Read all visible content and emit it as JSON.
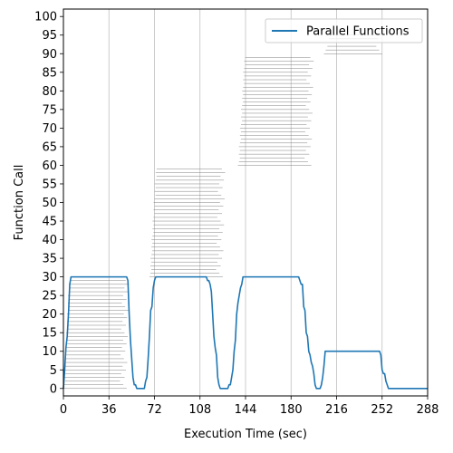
{
  "chart_data": {
    "type": "line",
    "xlabel": "Execution Time (sec)",
    "ylabel": "Function Call",
    "xlim": [
      0,
      288
    ],
    "ylim": [
      -2,
      102
    ],
    "x_ticks": [
      0,
      36,
      72,
      108,
      144,
      180,
      216,
      252,
      288
    ],
    "y_ticks": [
      0,
      5,
      10,
      15,
      20,
      25,
      30,
      35,
      40,
      45,
      50,
      55,
      60,
      65,
      70,
      75,
      80,
      85,
      90,
      95,
      100
    ],
    "grid": "vertical",
    "legend_position": "top-right",
    "series": [
      {
        "name": "Parallel Functions",
        "color": "#1f77b4",
        "x": [
          0,
          1,
          2,
          3,
          4,
          5,
          6,
          50,
          51,
          52,
          53,
          54,
          55,
          56,
          57,
          58,
          59,
          60,
          64,
          65,
          66,
          67,
          68,
          69,
          70,
          71,
          72,
          73,
          74,
          75,
          76,
          77,
          78,
          80,
          112,
          113,
          114,
          115,
          116,
          117,
          118,
          119,
          120,
          121,
          122,
          123,
          124,
          126,
          128,
          130,
          131,
          132,
          133,
          134,
          135,
          136,
          137,
          138,
          139,
          140,
          141,
          142,
          143,
          144,
          185,
          186,
          187,
          188,
          189,
          190,
          191,
          192,
          193,
          194,
          195,
          196,
          197,
          198,
          199,
          200,
          201,
          202,
          203,
          204,
          205,
          206,
          207,
          208,
          209,
          210,
          211,
          212,
          213,
          214,
          250,
          251,
          252,
          253,
          254,
          255,
          256,
          257,
          258,
          288
        ],
        "values": [
          0,
          5,
          11,
          14,
          20,
          28,
          30,
          30,
          29,
          20,
          13,
          8,
          3,
          1,
          1,
          0,
          0,
          0,
          0,
          2,
          3,
          8,
          14,
          21,
          22,
          27,
          29,
          30,
          30,
          30,
          30,
          30,
          30,
          30,
          30,
          30,
          29,
          29,
          28,
          26,
          20,
          14,
          11,
          9,
          3,
          1,
          0,
          0,
          0,
          0,
          1,
          1,
          3,
          5,
          10,
          13,
          20,
          23,
          25,
          27,
          28,
          30,
          30,
          30,
          30,
          30,
          29,
          28,
          28,
          22,
          21,
          15,
          14,
          10,
          9,
          7,
          6,
          4,
          1,
          0,
          0,
          0,
          0,
          1,
          3,
          6,
          10,
          10,
          10,
          10,
          10,
          10,
          10,
          10,
          10,
          9,
          5,
          4,
          4,
          2,
          1,
          0,
          0,
          0
        ]
      }
    ],
    "function_calls": [
      {
        "start": 0,
        "end": 52,
        "first": 0,
        "last": 29
      },
      {
        "start": 68,
        "end": 128,
        "first": 30,
        "last": 59
      },
      {
        "start": 138,
        "end": 198,
        "first": 60,
        "last": 89
      },
      {
        "start": 206,
        "end": 254,
        "first": 90,
        "last": 95
      }
    ]
  }
}
